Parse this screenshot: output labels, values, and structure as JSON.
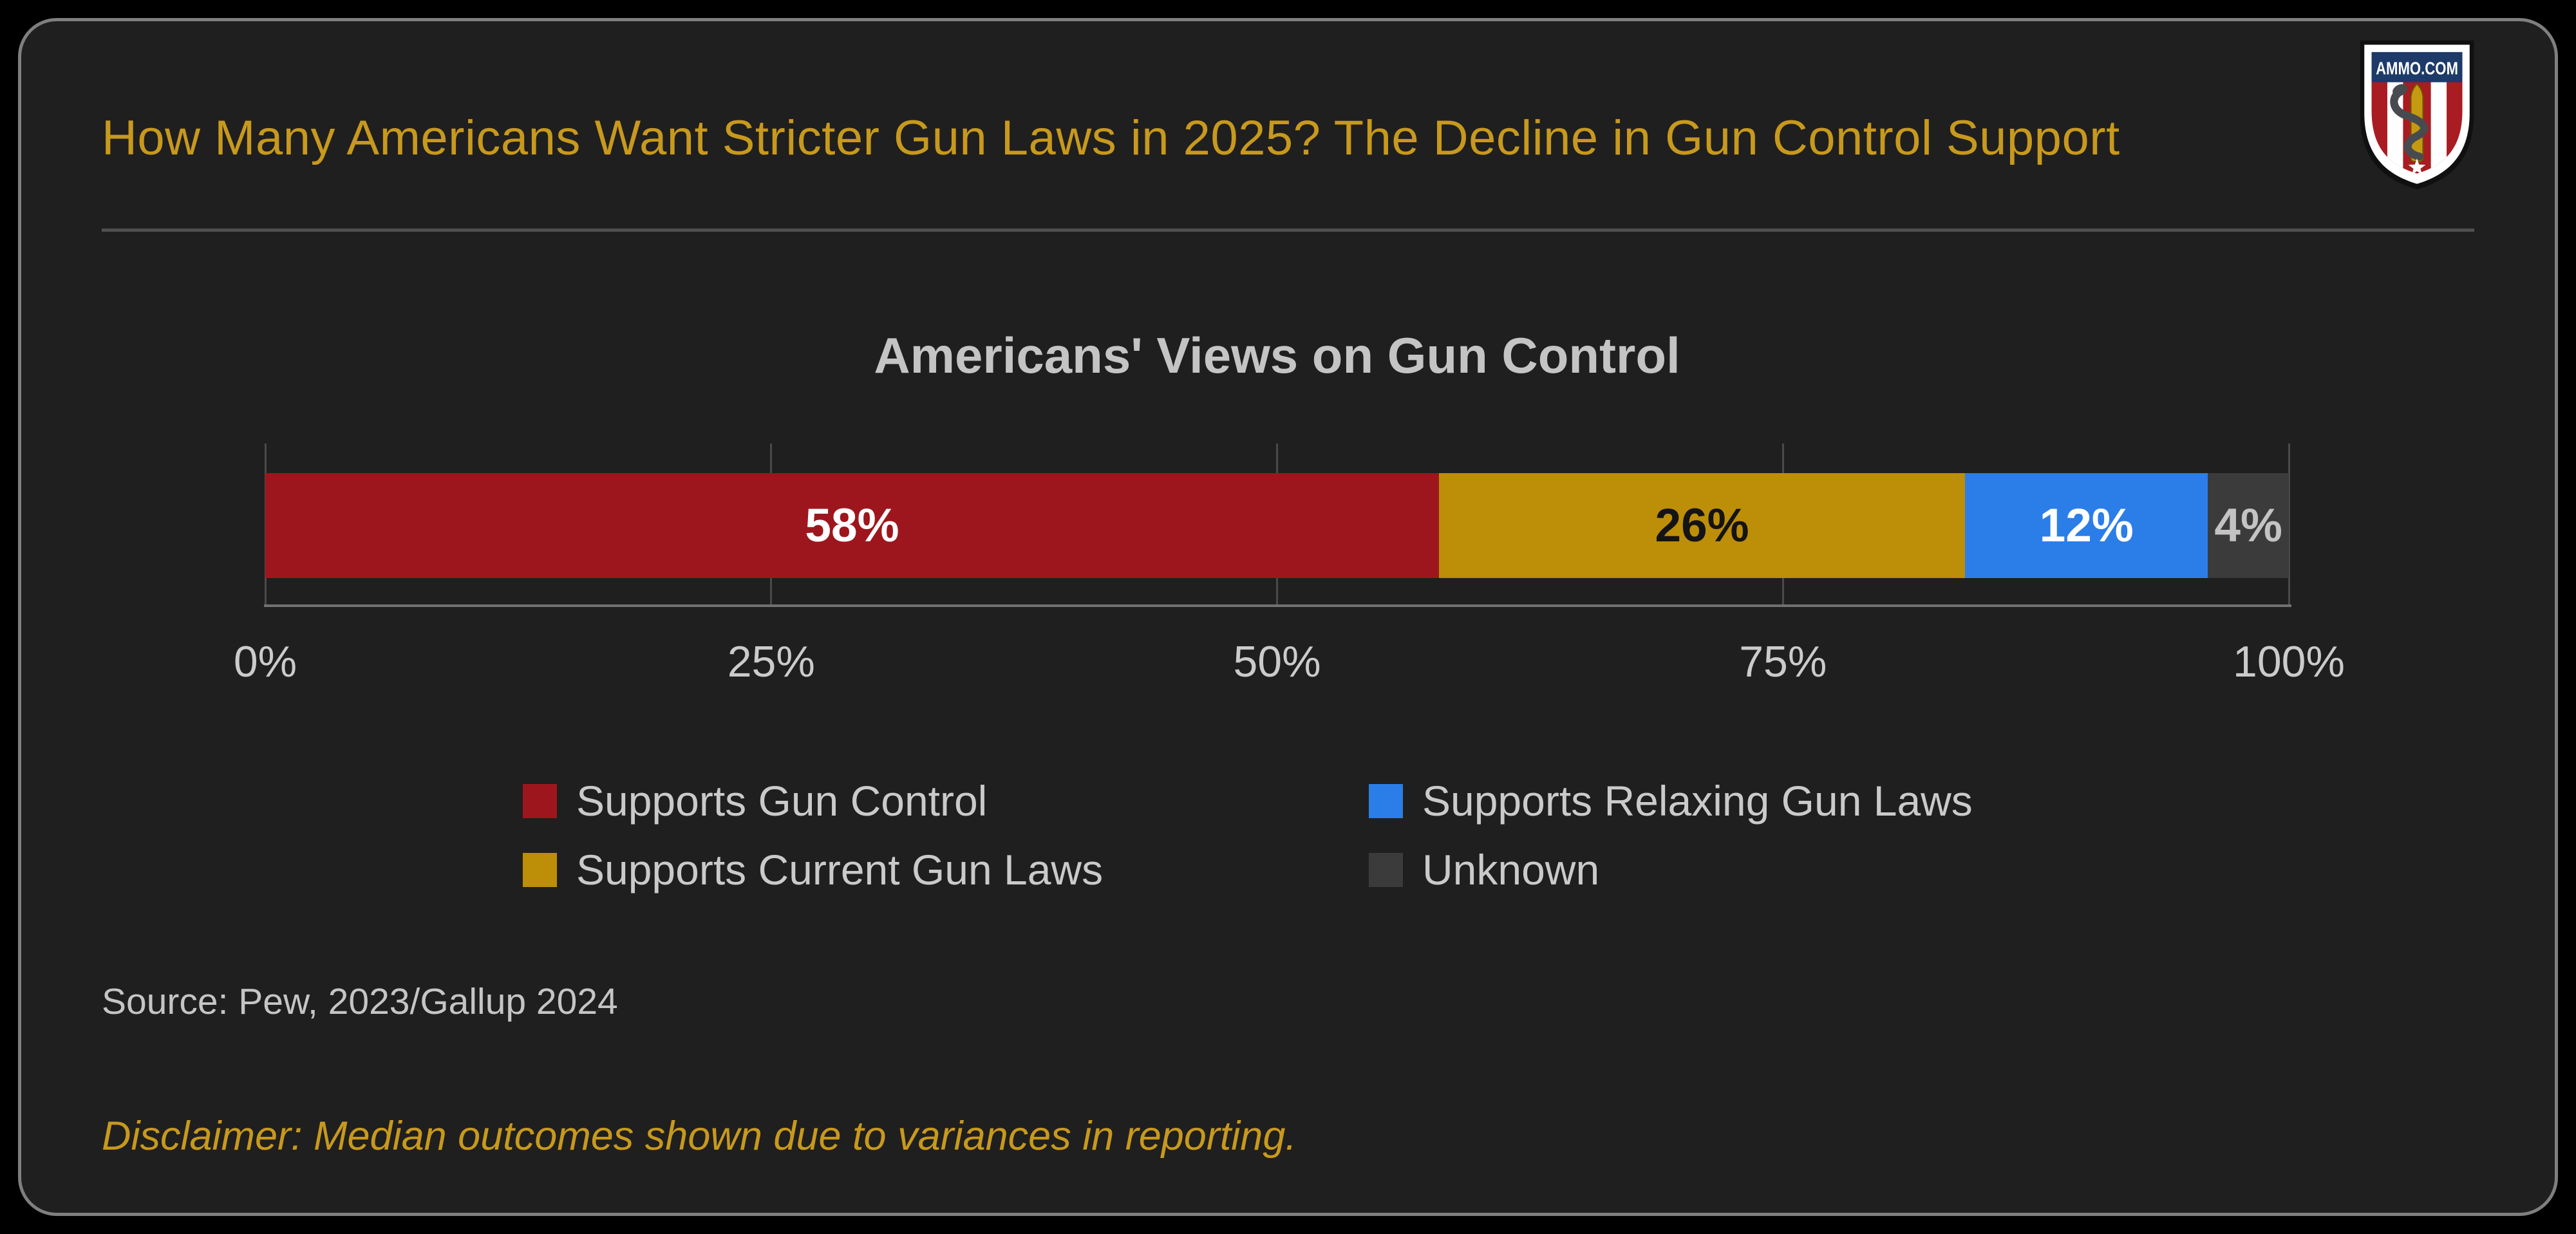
{
  "header": {
    "title": "How Many Americans Want Stricter Gun Laws in 2025? The Decline in Gun Control Support",
    "logo_text": "AMMO.COM"
  },
  "chart_data": {
    "type": "bar",
    "variant": "horizontal-stacked",
    "title": "Americans' Views on Gun Control",
    "series": [
      {
        "name": "Supports Gun Control",
        "value": 58,
        "label": "58%",
        "color": "#9e161d",
        "label_color": "#ffffff"
      },
      {
        "name": "Supports Current Gun Laws",
        "value": 26,
        "label": "26%",
        "color": "#bd8e07",
        "label_color": "#141414"
      },
      {
        "name": "Supports Relaxing Gun Laws",
        "value": 12,
        "label": "12%",
        "color": "#2b7ee8",
        "label_color": "#ffffff"
      },
      {
        "name": "Unknown",
        "value": 4,
        "label": "4%",
        "color": "#3b3b3b",
        "label_color": "#c3c3c3"
      }
    ],
    "x_ticks": [
      "0%",
      "25%",
      "50%",
      "75%",
      "100%"
    ],
    "x_tick_values": [
      0,
      25,
      50,
      75,
      100
    ],
    "xlim": [
      0,
      100
    ],
    "grid": true,
    "legend_position": "bottom"
  },
  "legend": {
    "items": [
      {
        "label": "Supports Gun Control",
        "color": "#9e161d"
      },
      {
        "label": "Supports Current Gun Laws",
        "color": "#bd8e07"
      },
      {
        "label": "Supports Relaxing Gun Laws",
        "color": "#2b7ee8"
      },
      {
        "label": "Unknown",
        "color": "#3b3b3b"
      }
    ]
  },
  "footer": {
    "source": "Source: Pew, 2023/Gallup 2024",
    "disclaimer": "Disclaimer: Median outcomes shown due to variances in reporting."
  },
  "colors": {
    "page_background": "#000000",
    "panel_background": "#201f1f",
    "panel_border": "#7f7f7f",
    "accent_gold": "#c7991d",
    "gridline": "#4a4a4a",
    "axis_line": "#717171",
    "text_gray": "#c6c5c5"
  }
}
